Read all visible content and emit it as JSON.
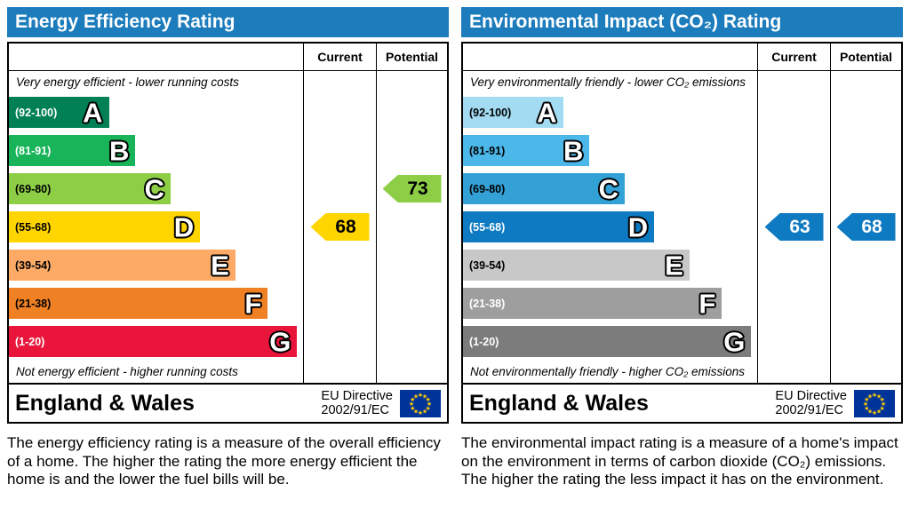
{
  "panels": [
    {
      "title": "Energy Efficiency Rating",
      "header_color": "#1c7cbc",
      "col_current": "Current",
      "col_potential": "Potential",
      "top_caption": "Very energy efficient - lower running costs",
      "bottom_caption": "Not energy efficient - higher running costs",
      "bands": [
        {
          "range": "(92-100)",
          "letter": "A",
          "color": "#008054",
          "width_pct": 34,
          "range_color": "#ffffff"
        },
        {
          "range": "(81-91)",
          "letter": "B",
          "color": "#19b459",
          "width_pct": 43,
          "range_color": "#ffffff"
        },
        {
          "range": "(69-80)",
          "letter": "C",
          "color": "#8dce46",
          "width_pct": 55,
          "range_color": "#000000"
        },
        {
          "range": "(55-68)",
          "letter": "D",
          "color": "#ffd500",
          "width_pct": 65,
          "range_color": "#000000"
        },
        {
          "range": "(39-54)",
          "letter": "E",
          "color": "#fcaa65",
          "width_pct": 77,
          "range_color": "#000000"
        },
        {
          "range": "(21-38)",
          "letter": "F",
          "color": "#ef8023",
          "width_pct": 88,
          "range_color": "#000000"
        },
        {
          "range": "(1-20)",
          "letter": "G",
          "color": "#e9153b",
          "width_pct": 98,
          "range_color": "#ffffff"
        }
      ],
      "current": {
        "value": "68",
        "band_index": 3,
        "color": "#ffd500",
        "text_color": "#000000"
      },
      "potential": {
        "value": "73",
        "band_index": 2,
        "color": "#8dce46",
        "text_color": "#000000"
      },
      "footer_region": "England & Wales",
      "directive_line1": "EU Directive",
      "directive_line2": "2002/91/EC",
      "description": "The energy efficiency rating is a measure of the overall efficiency of a home. The higher the rating the more energy efficient the home is and the lower the fuel bills will be."
    },
    {
      "title": "Environmental Impact (CO₂) Rating",
      "header_color": "#1c7cbc",
      "col_current": "Current",
      "col_potential": "Potential",
      "top_caption": "Very environmentally friendly - lower CO₂ emissions",
      "bottom_caption": "Not environmentally friendly - higher CO₂ emissions",
      "bands": [
        {
          "range": "(92-100)",
          "letter": "A",
          "color": "#a3dbf2",
          "width_pct": 34,
          "range_color": "#000000"
        },
        {
          "range": "(81-91)",
          "letter": "B",
          "color": "#4cb8ea",
          "width_pct": 43,
          "range_color": "#000000"
        },
        {
          "range": "(69-80)",
          "letter": "C",
          "color": "#33a1d6",
          "width_pct": 55,
          "range_color": "#000000"
        },
        {
          "range": "(55-68)",
          "letter": "D",
          "color": "#0e7ac1",
          "width_pct": 65,
          "range_color": "#ffffff"
        },
        {
          "range": "(39-54)",
          "letter": "E",
          "color": "#c8c8c8",
          "width_pct": 77,
          "range_color": "#000000"
        },
        {
          "range": "(21-38)",
          "letter": "F",
          "color": "#9e9e9e",
          "width_pct": 88,
          "range_color": "#ffffff"
        },
        {
          "range": "(1-20)",
          "letter": "G",
          "color": "#7c7c7c",
          "width_pct": 98,
          "range_color": "#ffffff"
        }
      ],
      "current": {
        "value": "63",
        "band_index": 3,
        "color": "#0e7ac1",
        "text_color": "#ffffff"
      },
      "potential": {
        "value": "68",
        "band_index": 3,
        "color": "#0e7ac1",
        "text_color": "#ffffff"
      },
      "footer_region": "England & Wales",
      "directive_line1": "EU Directive",
      "directive_line2": "2002/91/EC",
      "description": "The environmental impact rating is a measure of a home's impact on the environment in terms of carbon dioxide (CO₂) emissions. The higher the rating the less impact it has on the environment."
    }
  ],
  "chart_data": [
    {
      "type": "bar",
      "title": "Energy Efficiency Rating",
      "categories": [
        "A",
        "B",
        "C",
        "D",
        "E",
        "F",
        "G"
      ],
      "band_ranges": [
        "92-100",
        "81-91",
        "69-80",
        "55-68",
        "39-54",
        "21-38",
        "1-20"
      ],
      "current": 68,
      "current_band": "D",
      "potential": 73,
      "potential_band": "C",
      "region": "England & Wales",
      "directive": "EU Directive 2002/91/EC"
    },
    {
      "type": "bar",
      "title": "Environmental Impact (CO₂) Rating",
      "categories": [
        "A",
        "B",
        "C",
        "D",
        "E",
        "F",
        "G"
      ],
      "band_ranges": [
        "92-100",
        "81-91",
        "69-80",
        "55-68",
        "39-54",
        "21-38",
        "1-20"
      ],
      "current": 63,
      "current_band": "D",
      "potential": 68,
      "potential_band": "D",
      "region": "England & Wales",
      "directive": "EU Directive 2002/91/EC"
    }
  ]
}
